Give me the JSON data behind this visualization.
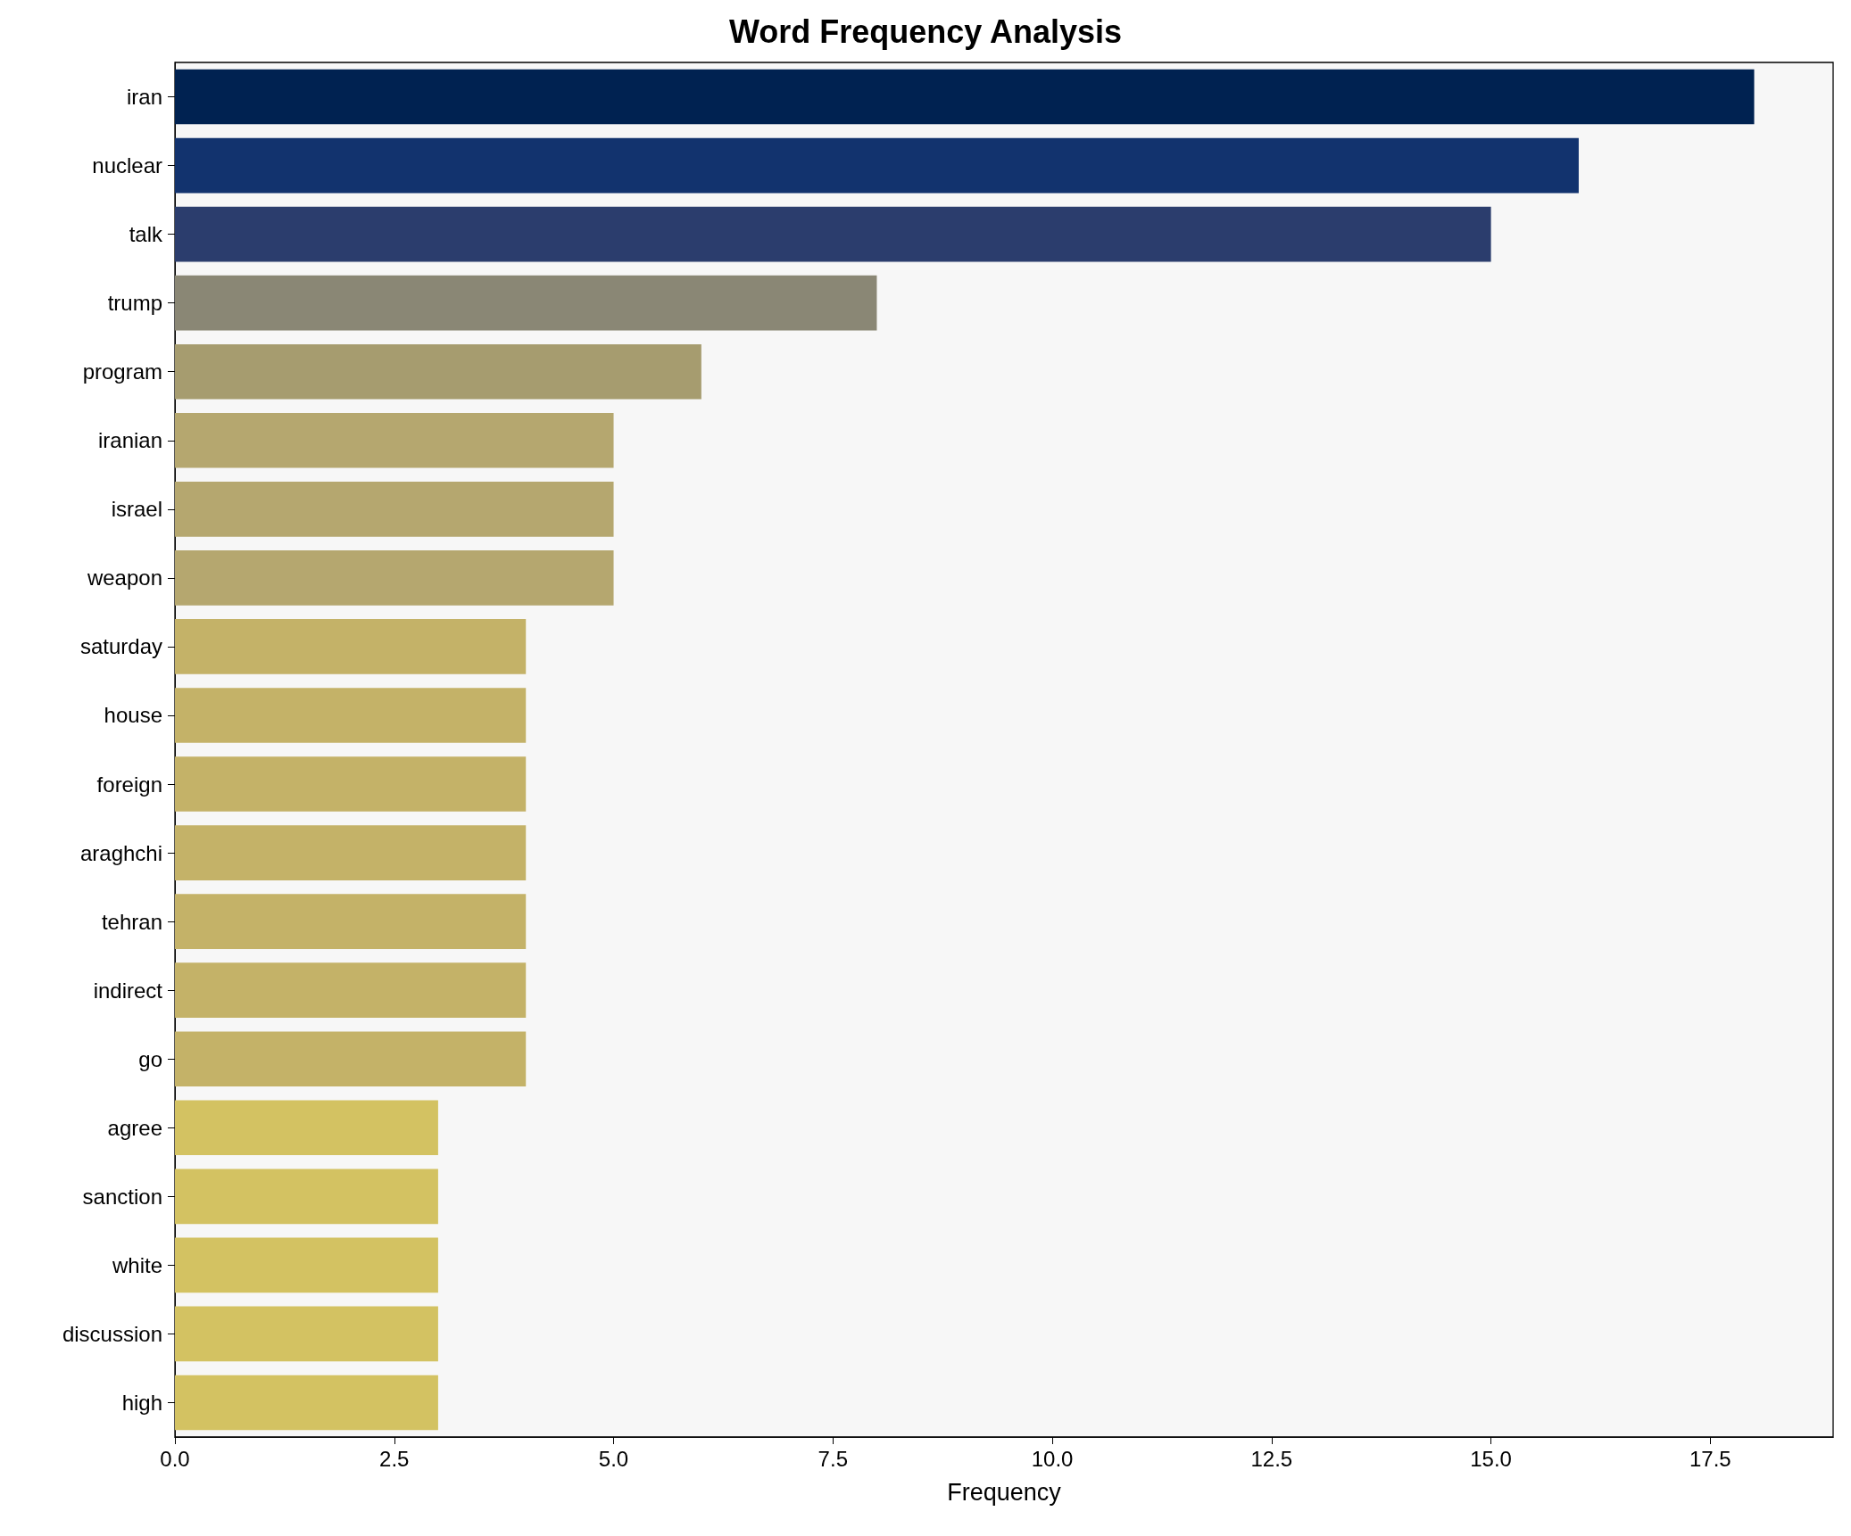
{
  "chart_data": {
    "type": "bar",
    "orientation": "horizontal",
    "title": "Word Frequency Analysis",
    "xlabel": "Frequency",
    "categories": [
      "iran",
      "nuclear",
      "talk",
      "trump",
      "program",
      "iranian",
      "israel",
      "weapon",
      "saturday",
      "house",
      "foreign",
      "araghchi",
      "tehran",
      "indirect",
      "go",
      "agree",
      "sanction",
      "white",
      "discussion",
      "high"
    ],
    "values": [
      18,
      16,
      15,
      8,
      6,
      5,
      5,
      5,
      4,
      4,
      4,
      4,
      4,
      4,
      4,
      3,
      3,
      3,
      3,
      3
    ],
    "colors": [
      "#002251",
      "#12336e",
      "#2b3d6d",
      "#8a8775",
      "#a69c6f",
      "#b5a76f",
      "#b5a76f",
      "#b5a76f",
      "#c4b268",
      "#c4b268",
      "#c4b268",
      "#c4b268",
      "#c4b268",
      "#c4b268",
      "#c4b268",
      "#d3c262",
      "#d3c262",
      "#d3c262",
      "#d3c262",
      "#d3c262"
    ],
    "xlim": [
      0,
      18.9
    ],
    "xticks": [
      {
        "value": 0,
        "label": "0.0"
      },
      {
        "value": 2.5,
        "label": "2.5"
      },
      {
        "value": 5,
        "label": "5.0"
      },
      {
        "value": 7.5,
        "label": "7.5"
      },
      {
        "value": 10,
        "label": "10.0"
      },
      {
        "value": 12.5,
        "label": "12.5"
      },
      {
        "value": 15,
        "label": "15.0"
      },
      {
        "value": 17.5,
        "label": "17.5"
      }
    ],
    "grid": false
  }
}
